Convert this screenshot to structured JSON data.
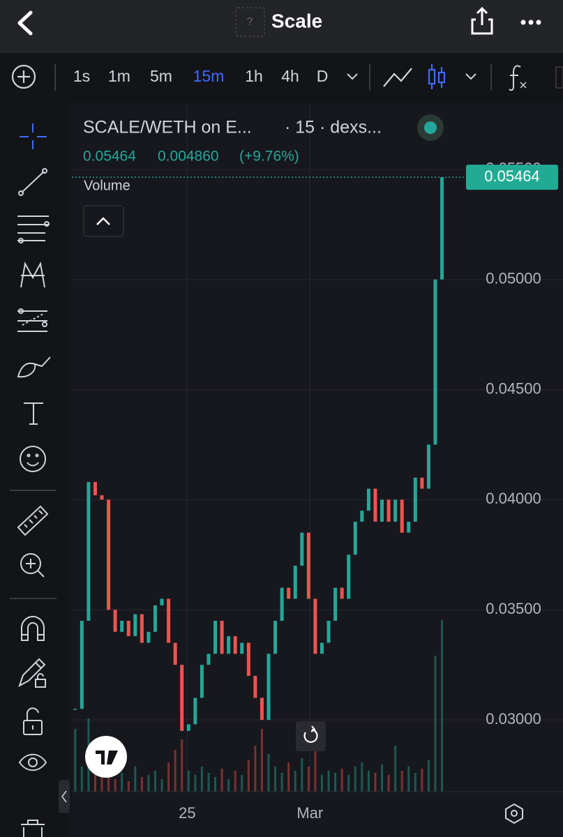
{
  "header": {
    "title": "Scale",
    "badge": "?"
  },
  "toolbar": {
    "intervals": [
      "1s",
      "1m",
      "5m",
      "15m",
      "1h",
      "4h",
      "D"
    ],
    "active_interval": "15m"
  },
  "chart_data": {
    "type": "candlestick",
    "symbol": "SCALE/WETH on E...",
    "meta": "· 15 · dexs...",
    "change": "0.004860",
    "change_pct": "(+9.76%)",
    "study": "Volume",
    "last_price": 0.05464,
    "values": [
      0.0305,
      0.0345,
      0.0408,
      0.0402,
      0.04,
      0.035,
      0.034,
      0.0345,
      0.0338,
      0.0348,
      0.0335,
      0.034,
      0.0352,
      0.0355,
      0.0335,
      0.0325,
      0.0295,
      0.0298,
      0.031,
      0.0325,
      0.033,
      0.0345,
      0.033,
      0.0338,
      0.033,
      0.0335,
      0.032,
      0.031,
      0.03,
      0.033,
      0.0345,
      0.036,
      0.0355,
      0.037,
      0.0385,
      0.0355,
      0.033,
      0.0335,
      0.0345,
      0.036,
      0.0355,
      0.0375,
      0.039,
      0.0395,
      0.0405,
      0.039,
      0.04,
      0.039,
      0.04,
      0.0385,
      0.039,
      0.041,
      0.0405,
      0.0425,
      0.05,
      0.05464
    ],
    "volume": [
      30,
      12,
      35,
      8,
      10,
      18,
      6,
      9,
      5,
      12,
      7,
      8,
      10,
      6,
      14,
      20,
      25,
      10,
      8,
      12,
      9,
      7,
      11,
      6,
      10,
      8,
      15,
      22,
      30,
      18,
      12,
      9,
      14,
      10,
      16,
      12,
      20,
      8,
      10,
      9,
      11,
      8,
      12,
      14,
      10,
      9,
      13,
      8,
      22,
      10,
      12,
      9,
      11,
      15,
      65,
      82
    ],
    "up_color": "#26a69a",
    "down_color": "#ef5350",
    "xlim": [
      -0.5,
      58.5
    ],
    "xticks": [
      {
        "value": 16.8,
        "label": "25"
      },
      {
        "value": 35.2,
        "label": "Mar"
      }
    ],
    "ylim": [
      0.02674,
      0.05794
    ],
    "yticks": [
      {
        "value": 0.03,
        "label": "0.03000"
      },
      {
        "value": 0.035,
        "label": "0.03500"
      },
      {
        "value": 0.04,
        "label": "0.04000"
      },
      {
        "value": 0.045,
        "label": "0.04500"
      },
      {
        "value": 0.05,
        "label": "0.05000"
      },
      {
        "value": 0.055,
        "label": "0.05500"
      }
    ],
    "vlim": [
      0,
      100
    ],
    "grid": true
  }
}
